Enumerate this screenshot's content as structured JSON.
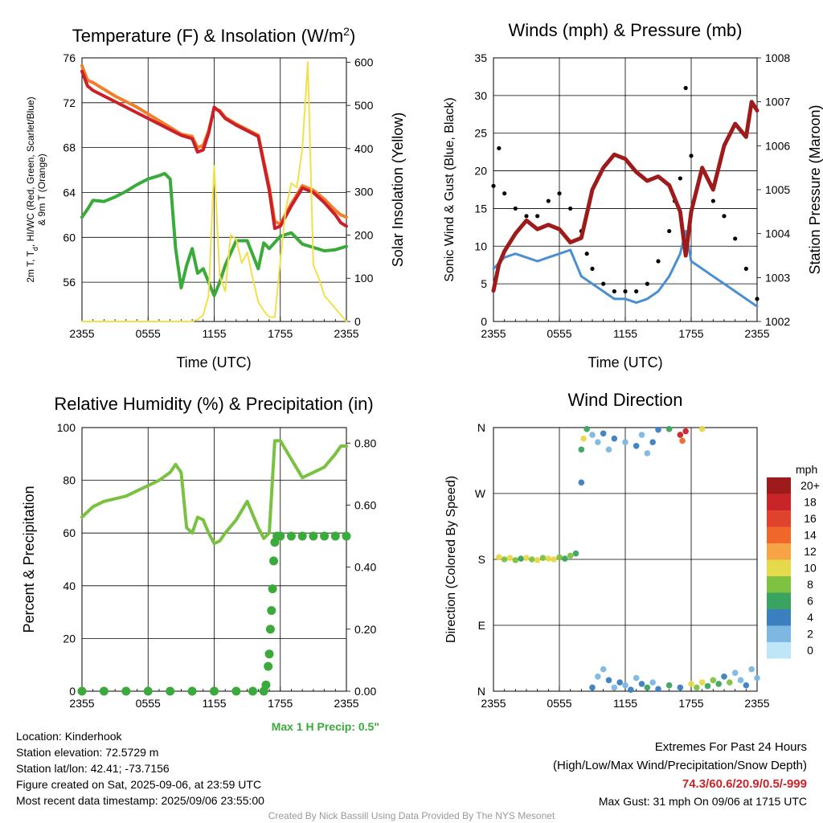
{
  "panels": {
    "temp": {
      "title": "Temperature (F) & Insolation (W/m",
      "title_sup": "2",
      "title_end": ")",
      "ylabel_left_1": "2m T, T",
      "ylabel_left_sub": "d",
      "ylabel_left_2": ", HI/WC (Red, Green, Scarlet/Blue)",
      "ylabel_left_3": "& 9m T (Orange)",
      "ylabel_right": "Solar Insolation (Yellow)",
      "xlabel": "Time (UTC)"
    },
    "winds": {
      "title": "Winds (mph) & Pressure (mb)",
      "ylabel_left": "Sonic Wind & Gust (Blue, Black)",
      "ylabel_right": "Station Pressure (Maroon)",
      "xlabel": "Time (UTC)"
    },
    "rh": {
      "title": "Relative Humidity (%) & Precipitation (in)",
      "ylabel_left": "Percent & Precipitation",
      "max_precip": "Max 1 H Precip: 0.5\""
    },
    "wdir": {
      "title": "Wind Direction",
      "ylabel_left": "Direction (Colored By Speed)",
      "legend_title": "mph"
    }
  },
  "footer": {
    "location": "Location: Kinderhook",
    "elevation": "Station elevation: 72.5729 m",
    "latlon": "Station lat/lon: 42.41; -73.7156",
    "created": "Figure created on Sat, 2025-09-06, at 23:59 UTC",
    "recent": "Most recent data timestamp: 2025/09/06 23:55:00",
    "extremes_title": "Extremes For Past 24 Hours",
    "extremes_sub": "(High/Low/Max Wind/Precipitation/Snow Depth)",
    "extremes_values": "74.3/60.6/20.9/0.5/-999",
    "max_gust": "Max Gust: 31 mph On 09/06 at 1715 UTC",
    "credit": "Created By Nick Bassill Using Data Provided By The NYS Mesonet"
  },
  "chart_data": [
    {
      "type": "line",
      "title": "Temperature (F) & Insolation (W/m2)",
      "xlabel": "Time (UTC)",
      "x_ticks": [
        "2355",
        "0555",
        "1155",
        "1755",
        "2355"
      ],
      "x_hours": [
        0,
        24
      ],
      "ylim": [
        52.5,
        76
      ],
      "y_ticks": [
        56,
        60,
        64,
        68,
        72,
        76
      ],
      "ylim_right": [
        0,
        610
      ],
      "y_ticks_right": [
        0,
        100,
        200,
        300,
        400,
        500,
        600
      ],
      "series": [
        {
          "name": "9m T",
          "color": "#f07f2a",
          "axis": "left",
          "x": [
            0,
            0.5,
            1,
            2,
            3,
            4,
            5,
            6,
            7,
            8,
            9,
            10,
            10.5,
            11,
            11.5,
            12,
            12.5,
            13,
            14,
            15,
            16,
            17,
            17.5,
            18,
            19,
            20,
            21,
            22,
            23,
            23.5,
            24
          ],
          "y": [
            75.3,
            74,
            73.8,
            73.2,
            72.6,
            72.1,
            71.6,
            71,
            70.4,
            69.8,
            69.2,
            69,
            68,
            68.2,
            69.5,
            71.5,
            71.3,
            70.7,
            70.1,
            69.6,
            69.1,
            64.5,
            61.4,
            61.2,
            63,
            64.6,
            64.2,
            63.4,
            62.4,
            62,
            61.8
          ]
        },
        {
          "name": "2m T",
          "color": "#cc1f27",
          "axis": "left",
          "x": [
            0,
            0.5,
            1,
            2,
            3,
            4,
            5,
            6,
            7,
            8,
            9,
            10,
            10.5,
            11,
            11.5,
            12,
            12.5,
            13,
            14,
            15,
            16,
            17,
            17.5,
            18,
            19,
            20,
            21,
            22,
            23,
            23.5,
            24
          ],
          "y": [
            74.8,
            73.5,
            73.1,
            72.6,
            72.1,
            71.6,
            71.1,
            70.6,
            70.1,
            69.6,
            69.1,
            68.8,
            67.6,
            67.8,
            69.3,
            71.6,
            71.2,
            70.6,
            70,
            69.5,
            69,
            64.2,
            60.8,
            61,
            62.8,
            64.4,
            64,
            63.1,
            62,
            61.3,
            61
          ]
        },
        {
          "name": "Td",
          "color": "#3aab3a",
          "axis": "left",
          "x": [
            0,
            0.5,
            1,
            2,
            3,
            4,
            5,
            6,
            7,
            7.5,
            8,
            8.5,
            9,
            9.5,
            10,
            10.5,
            11,
            11.5,
            12,
            12.5,
            13,
            14,
            15,
            16,
            16.5,
            17,
            18,
            19,
            20,
            21,
            22,
            23,
            24
          ],
          "y": [
            61.8,
            62.5,
            63.3,
            63.2,
            63.6,
            64.1,
            64.7,
            65.2,
            65.5,
            65.7,
            65.2,
            59,
            55.5,
            57.5,
            59,
            56.8,
            57.2,
            56,
            54.8,
            56,
            57.5,
            59.7,
            59.7,
            57.2,
            59.5,
            59,
            60.1,
            60.4,
            59.4,
            59.1,
            58.8,
            58.9,
            59.2
          ]
        },
        {
          "name": "Solar",
          "color": "#f2e04a",
          "axis": "right",
          "x": [
            0,
            1,
            2,
            3,
            4,
            5,
            6,
            7,
            8,
            9,
            10,
            10.5,
            11,
            11.5,
            12,
            12.5,
            13,
            13.5,
            14,
            14.5,
            15,
            15.5,
            16,
            16.5,
            17,
            17.5,
            18,
            18.5,
            19,
            19.5,
            20,
            20.5,
            21,
            21.5,
            22,
            23,
            24
          ],
          "y": [
            0,
            0,
            0,
            0,
            0,
            0,
            0,
            0,
            0,
            0,
            0,
            5,
            15,
            60,
            360,
            105,
            70,
            200,
            190,
            135,
            160,
            100,
            45,
            25,
            10,
            10,
            140,
            260,
            320,
            310,
            400,
            600,
            130,
            100,
            60,
            30,
            0
          ]
        }
      ]
    },
    {
      "type": "line",
      "title": "Winds (mph) & Pressure (mb)",
      "xlabel": "Time (UTC)",
      "x_ticks": [
        "2355",
        "0555",
        "1155",
        "1755",
        "2355"
      ],
      "x_hours": [
        0,
        24
      ],
      "ylim": [
        0,
        35
      ],
      "y_ticks": [
        0,
        5,
        10,
        15,
        20,
        25,
        30,
        35
      ],
      "ylim_right": [
        1002,
        1008
      ],
      "y_ticks_right": [
        1002,
        1003,
        1004,
        1005,
        1006,
        1007,
        1008
      ],
      "series": [
        {
          "name": "Sonic Wind",
          "color": "#4a8fd1",
          "axis": "left",
          "x": [
            0,
            1,
            2,
            3,
            4,
            5,
            6,
            7,
            8,
            9,
            10,
            11,
            12,
            13,
            14,
            15,
            16,
            17,
            17.5,
            18,
            19,
            20,
            21,
            22,
            23,
            24
          ],
          "y": [
            7,
            8.5,
            9,
            8.5,
            8,
            8.5,
            9,
            9.5,
            6,
            5,
            4,
            3,
            3,
            2.5,
            3,
            4,
            6,
            9,
            12,
            8,
            7,
            6,
            5,
            4,
            3,
            2
          ]
        },
        {
          "name": "Gust",
          "color": "#000000",
          "axis": "left",
          "x": [
            0,
            0.5,
            1,
            2,
            3,
            4,
            5,
            6,
            7,
            8,
            8.5,
            9,
            10,
            11,
            12,
            13,
            14,
            15,
            16,
            16.5,
            17,
            17.5,
            18,
            19,
            20,
            21,
            22,
            23,
            24
          ],
          "y": [
            18,
            23,
            17,
            15,
            14,
            14,
            16,
            17,
            15,
            12,
            9,
            7,
            5,
            4,
            4,
            4,
            5,
            8,
            12,
            16,
            19,
            31,
            22,
            20,
            16,
            14,
            11,
            7,
            3
          ]
        },
        {
          "name": "Pressure",
          "color": "#9e1b1b",
          "axis": "right",
          "x": [
            0,
            0.5,
            1,
            2,
            3,
            4,
            5,
            6,
            7,
            8,
            9,
            10,
            11,
            12,
            13,
            14,
            15,
            16,
            17,
            17.5,
            18,
            19,
            20,
            21,
            22,
            23,
            23.5,
            24
          ],
          "y": [
            1002.7,
            1003.3,
            1003.6,
            1004,
            1004.3,
            1004.1,
            1004.2,
            1004.1,
            1003.8,
            1003.9,
            1005,
            1005.5,
            1005.8,
            1005.7,
            1005.4,
            1005.2,
            1005.3,
            1005.1,
            1004.5,
            1003.5,
            1004.5,
            1005.5,
            1005,
            1006,
            1006.5,
            1006.2,
            1007,
            1006.8
          ]
        }
      ]
    },
    {
      "type": "line",
      "title": "Relative Humidity (%) & Precipitation (in)",
      "x_ticks": [
        "2355",
        "0555",
        "1155",
        "1755",
        "2355"
      ],
      "x_hours": [
        0,
        24
      ],
      "ylim": [
        0,
        100
      ],
      "y_ticks": [
        0,
        20,
        40,
        60,
        80,
        100
      ],
      "ylim_right": [
        0,
        0.85
      ],
      "y_ticks_right": [
        0.0,
        0.2,
        0.4,
        0.6,
        0.8
      ],
      "series": [
        {
          "name": "RH",
          "color": "#7ac142",
          "axis": "left",
          "x": [
            0,
            1,
            2,
            3,
            4,
            5,
            6,
            7,
            8,
            8.5,
            9,
            9.5,
            10,
            10.5,
            11,
            11.5,
            12,
            12.5,
            13,
            14,
            15,
            16,
            16.5,
            17,
            17.5,
            18,
            19,
            20,
            21,
            22,
            23,
            23.5,
            24
          ],
          "y": [
            66,
            70,
            72,
            73,
            74,
            76,
            78,
            80,
            83,
            86,
            83,
            62,
            60,
            66,
            65,
            60,
            56,
            57,
            60,
            65,
            72,
            62,
            58,
            60,
            95,
            95,
            88,
            81,
            83,
            85,
            90,
            93,
            93
          ]
        },
        {
          "name": "Precipitation",
          "color": "#3aab3a",
          "axis": "right",
          "style": "dots",
          "x": [
            0,
            2,
            4,
            6,
            8,
            10,
            12,
            14,
            15.5,
            16.5,
            16.7,
            16.9,
            17,
            17.1,
            17.2,
            17.3,
            17.4,
            17.5,
            17.7,
            18,
            19,
            20,
            21,
            22,
            23,
            24
          ],
          "y": [
            0,
            0,
            0,
            0,
            0,
            0,
            0,
            0,
            0,
            0,
            0.02,
            0.08,
            0.12,
            0.2,
            0.26,
            0.33,
            0.42,
            0.48,
            0.5,
            0.5,
            0.5,
            0.5,
            0.5,
            0.5,
            0.5,
            0.5
          ]
        }
      ]
    },
    {
      "type": "scatter",
      "title": "Wind Direction",
      "x_ticks": [
        "2355",
        "0555",
        "1155",
        "1755",
        "2355"
      ],
      "x_hours": [
        0,
        24
      ],
      "y_ticks": [
        "N",
        "E",
        "S",
        "W",
        "N"
      ],
      "ylim_deg": [
        0,
        360
      ],
      "colorbar_labels": [
        "20+",
        "18",
        "16",
        "14",
        "12",
        "10",
        "8",
        "6",
        "4",
        "2",
        "0"
      ],
      "colorbar_colors": [
        "#9e1b1b",
        "#c8242a",
        "#e0432d",
        "#f0672b",
        "#f7a447",
        "#e5d94c",
        "#7fc241",
        "#3aa35f",
        "#3b7fbf",
        "#7db7e2",
        "#bfe6f7"
      ],
      "points_deg": [
        [
          0.5,
          183,
          "#e5d94c"
        ],
        [
          1,
          180,
          "#7fc241"
        ],
        [
          1.5,
          182,
          "#e5d94c"
        ],
        [
          2,
          179,
          "#7fc241"
        ],
        [
          2.5,
          181,
          "#3aa35f"
        ],
        [
          3,
          182,
          "#e5d94c"
        ],
        [
          3.5,
          180,
          "#7fc241"
        ],
        [
          4,
          179,
          "#e5d94c"
        ],
        [
          4.5,
          182,
          "#7fc241"
        ],
        [
          5,
          181,
          "#e5d94c"
        ],
        [
          5.5,
          180,
          "#e5d94c"
        ],
        [
          6,
          183,
          "#7fc241"
        ],
        [
          6.5,
          181,
          "#3aa35f"
        ],
        [
          7,
          185,
          "#7fc241"
        ],
        [
          7.5,
          188,
          "#3aa35f"
        ],
        [
          8,
          285,
          "#3b7fbf"
        ],
        [
          8,
          330,
          "#3aa35f"
        ],
        [
          8.2,
          345,
          "#e5d94c"
        ],
        [
          8.5,
          358,
          "#3aa35f"
        ],
        [
          9,
          350,
          "#7db7e2"
        ],
        [
          9.5,
          340,
          "#7db7e2"
        ],
        [
          10,
          352,
          "#3b7fbf"
        ],
        [
          10.5,
          330,
          "#7db7e2"
        ],
        [
          11,
          345,
          "#3b7fbf"
        ],
        [
          12,
          340,
          "#7db7e2"
        ],
        [
          13,
          335,
          "#3b7fbf"
        ],
        [
          13.5,
          350,
          "#7db7e2"
        ],
        [
          14,
          325,
          "#7db7e2"
        ],
        [
          14.5,
          340,
          "#3b7fbf"
        ],
        [
          15,
          357,
          "#3b7fbf"
        ],
        [
          16,
          358,
          "#3aa35f"
        ],
        [
          17,
          350,
          "#c8242a"
        ],
        [
          17.2,
          342,
          "#f0672b"
        ],
        [
          17.5,
          355,
          "#c8242a"
        ],
        [
          19,
          358,
          "#e5d94c"
        ],
        [
          9,
          5,
          "#3b7fbf"
        ],
        [
          9.5,
          20,
          "#7db7e2"
        ],
        [
          10,
          30,
          "#7db7e2"
        ],
        [
          10.5,
          15,
          "#3b7fbf"
        ],
        [
          11,
          5,
          "#7db7e2"
        ],
        [
          11.5,
          12,
          "#3b7fbf"
        ],
        [
          12,
          8,
          "#7db7e2"
        ],
        [
          12.5,
          2,
          "#3b7fbf"
        ],
        [
          13,
          18,
          "#7db7e2"
        ],
        [
          13.5,
          10,
          "#3b7fbf"
        ],
        [
          14,
          5,
          "#3aa35f"
        ],
        [
          14.5,
          12,
          "#7db7e2"
        ],
        [
          15,
          3,
          "#3b7fbf"
        ],
        [
          16,
          8,
          "#3aa35f"
        ],
        [
          17,
          5,
          "#3b7fbf"
        ],
        [
          18,
          10,
          "#e5d94c"
        ],
        [
          18.5,
          5,
          "#7fc241"
        ],
        [
          19,
          12,
          "#e5d94c"
        ],
        [
          19.5,
          7,
          "#3aa35f"
        ],
        [
          20,
          15,
          "#7fc241"
        ],
        [
          20.5,
          10,
          "#3aa35f"
        ],
        [
          21,
          20,
          "#3b7fbf"
        ],
        [
          21.5,
          12,
          "#7fc241"
        ],
        [
          22,
          25,
          "#7db7e2"
        ],
        [
          22.5,
          15,
          "#7db7e2"
        ],
        [
          23,
          8,
          "#3b7fbf"
        ],
        [
          23.5,
          30,
          "#7db7e2"
        ],
        [
          24,
          18,
          "#7db7e2"
        ]
      ]
    }
  ]
}
